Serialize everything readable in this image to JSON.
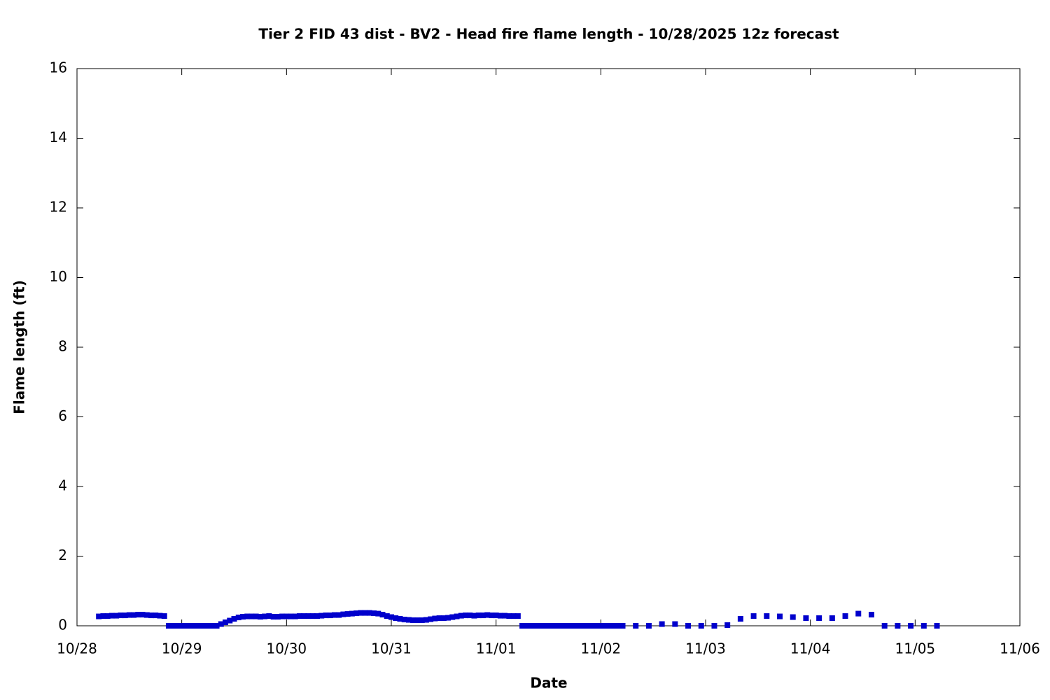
{
  "chart_data": {
    "type": "scatter",
    "title": "Tier 2 FID 43 dist - BV2 - Head fire flame length - 10/28/2025 12z forecast",
    "x_label": "Date",
    "y_label": "Flame length (ft)",
    "color": "#0000cc",
    "xlim": [
      0,
      216
    ],
    "xticks": [
      {
        "value": 0,
        "label": "10/28"
      },
      {
        "value": 24,
        "label": "10/29"
      },
      {
        "value": 48,
        "label": "10/30"
      },
      {
        "value": 72,
        "label": "10/31"
      },
      {
        "value": 96,
        "label": "11/01"
      },
      {
        "value": 120,
        "label": "11/02"
      },
      {
        "value": 144,
        "label": "11/03"
      },
      {
        "value": 168,
        "label": "11/04"
      },
      {
        "value": 192,
        "label": "11/05"
      },
      {
        "value": 216,
        "label": "11/06"
      }
    ],
    "ylim": [
      0,
      16
    ],
    "yticks": [
      0,
      2,
      4,
      6,
      8,
      10,
      12,
      14,
      16
    ],
    "x": [
      5,
      6,
      7,
      8,
      9,
      10,
      11,
      12,
      13,
      14,
      15,
      16,
      17,
      18,
      19,
      20,
      21,
      22,
      23,
      24,
      25,
      26,
      27,
      28,
      29,
      30,
      31,
      32,
      33,
      34,
      35,
      36,
      37,
      38,
      39,
      40,
      41,
      42,
      43,
      44,
      45,
      46,
      47,
      48,
      49,
      50,
      51,
      52,
      53,
      54,
      55,
      56,
      57,
      58,
      59,
      60,
      61,
      62,
      63,
      64,
      65,
      66,
      67,
      68,
      69,
      70,
      71,
      72,
      73,
      74,
      75,
      76,
      77,
      78,
      79,
      80,
      81,
      82,
      83,
      84,
      85,
      86,
      87,
      88,
      89,
      90,
      91,
      92,
      93,
      94,
      95,
      96,
      97,
      98,
      99,
      100,
      101,
      102,
      103,
      104,
      105,
      106,
      107,
      108,
      109,
      110,
      111,
      112,
      113,
      114,
      115,
      116,
      117,
      118,
      119,
      120,
      121,
      122,
      123,
      124,
      125,
      128,
      131,
      134,
      137,
      140,
      143,
      146,
      149,
      152,
      155,
      158,
      161,
      164,
      167,
      170,
      173,
      176,
      179,
      182,
      185,
      188,
      191,
      194,
      197
    ],
    "values": [
      0.27,
      0.28,
      0.28,
      0.29,
      0.29,
      0.3,
      0.3,
      0.31,
      0.31,
      0.32,
      0.32,
      0.31,
      0.3,
      0.3,
      0.29,
      0.28,
      0,
      0,
      0,
      0,
      0,
      0,
      0,
      0,
      0,
      0,
      0,
      0,
      0.05,
      0.1,
      0.15,
      0.2,
      0.24,
      0.26,
      0.27,
      0.27,
      0.27,
      0.26,
      0.27,
      0.28,
      0.26,
      0.26,
      0.27,
      0.27,
      0.27,
      0.27,
      0.28,
      0.28,
      0.28,
      0.28,
      0.28,
      0.29,
      0.3,
      0.3,
      0.31,
      0.31,
      0.33,
      0.34,
      0.35,
      0.36,
      0.37,
      0.37,
      0.37,
      0.36,
      0.35,
      0.32,
      0.28,
      0.25,
      0.22,
      0.2,
      0.18,
      0.17,
      0.16,
      0.16,
      0.16,
      0.17,
      0.19,
      0.21,
      0.22,
      0.22,
      0.23,
      0.25,
      0.27,
      0.29,
      0.3,
      0.3,
      0.29,
      0.3,
      0.3,
      0.31,
      0.3,
      0.3,
      0.29,
      0.29,
      0.28,
      0.28,
      0.28,
      0,
      0,
      0,
      0,
      0,
      0,
      0,
      0,
      0,
      0,
      0,
      0,
      0,
      0,
      0,
      0,
      0,
      0,
      0,
      0,
      0,
      0,
      0,
      0,
      0,
      0,
      0.05,
      0.05,
      0,
      0,
      0,
      0.02,
      0.2,
      0.28,
      0.28,
      0.27,
      0.25,
      0.22,
      0.22,
      0.22,
      0.28,
      0.35,
      0.32,
      0,
      0,
      0,
      0,
      0
    ]
  }
}
